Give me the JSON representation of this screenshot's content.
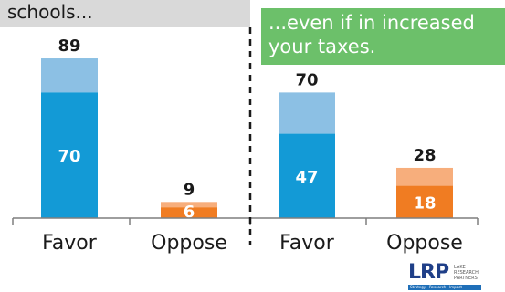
{
  "header": {
    "left_text": "schools...",
    "right_line1": "...even if in increased",
    "right_line2": "your taxes."
  },
  "logo": {
    "text": "LRP",
    "sub_lines": [
      "LAKE",
      "RESEARCH",
      "PARTNERS"
    ],
    "tagline": "Strategy · Research · Impact"
  },
  "colors": {
    "favor_dark": "#139ad6",
    "favor_light": "#8cc0e4",
    "oppose_dark": "#f07c22",
    "oppose_light": "#f7ae7c",
    "header_left_bg": "#d9d9d9",
    "header_right_bg": "#6cc06a"
  },
  "chart_data": {
    "type": "bar",
    "stacked": true,
    "groups": [
      {
        "categories": [
          "Favor",
          "Oppose"
        ],
        "totals": [
          89,
          9
        ],
        "strong": [
          70,
          6
        ]
      },
      {
        "categories": [
          "Favor",
          "Oppose"
        ],
        "totals": [
          70,
          28
        ],
        "strong": [
          47,
          18
        ]
      }
    ],
    "ylim": [
      0,
      100
    ],
    "grid": false,
    "divider": "dashed vertical between groups"
  }
}
